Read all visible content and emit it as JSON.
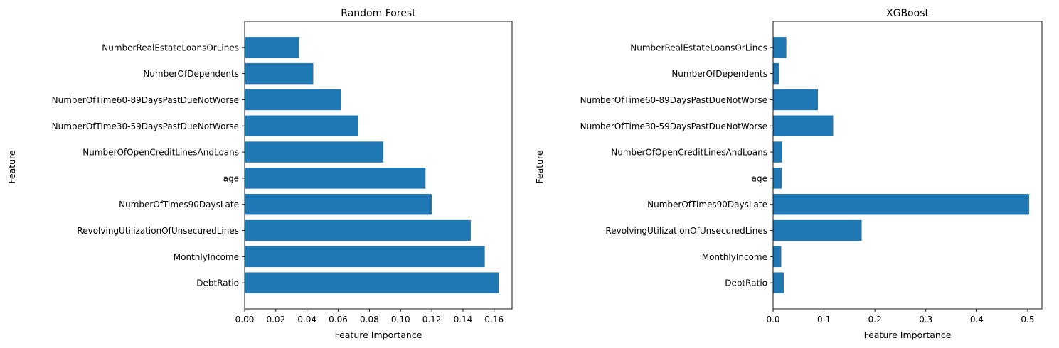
{
  "chart_data": [
    {
      "type": "bar",
      "orientation": "horizontal",
      "title": "Random Forest",
      "xlabel": "Feature Importance",
      "ylabel": "Feature",
      "bar_color": "#1f77b4",
      "categories": [
        "DebtRatio",
        "MonthlyIncome",
        "RevolvingUtilizationOfUnsecuredLines",
        "NumberOfTimes90DaysLate",
        "age",
        "NumberOfOpenCreditLinesAndLoans",
        "NumberOfTime30-59DaysPastDueNotWorse",
        "NumberOfTime60-89DaysPastDueNotWorse",
        "NumberOfDependents",
        "NumberRealEstateLoansOrLines"
      ],
      "values": [
        0.163,
        0.154,
        0.145,
        0.12,
        0.116,
        0.089,
        0.073,
        0.062,
        0.044,
        0.035
      ],
      "xlim": [
        0,
        0.1715
      ],
      "xticks": [
        0,
        0.02,
        0.04,
        0.06,
        0.08,
        0.1,
        0.12,
        0.14,
        0.16
      ],
      "xtick_labels": [
        "0.00",
        "0.02",
        "0.04",
        "0.06",
        "0.08",
        "0.10",
        "0.12",
        "0.14",
        "0.16"
      ],
      "grid": false
    },
    {
      "type": "bar",
      "orientation": "horizontal",
      "title": "XGBoost",
      "xlabel": "Feature Importance",
      "ylabel": "Feature",
      "bar_color": "#1f77b4",
      "categories": [
        "DebtRatio",
        "MonthlyIncome",
        "RevolvingUtilizationOfUnsecuredLines",
        "NumberOfTimes90DaysLate",
        "age",
        "NumberOfOpenCreditLinesAndLoans",
        "NumberOfTime30-59DaysPastDueNotWorse",
        "NumberOfTime60-89DaysPastDueNotWorse",
        "NumberOfDependents",
        "NumberRealEstateLoansOrLines"
      ],
      "values": [
        0.021,
        0.016,
        0.174,
        0.503,
        0.017,
        0.018,
        0.118,
        0.088,
        0.012,
        0.026
      ],
      "xlim": [
        0,
        0.528
      ],
      "xticks": [
        0,
        0.1,
        0.2,
        0.3,
        0.4,
        0.5
      ],
      "xtick_labels": [
        "0.0",
        "0.1",
        "0.2",
        "0.3",
        "0.4",
        "0.5"
      ],
      "grid": false
    }
  ]
}
